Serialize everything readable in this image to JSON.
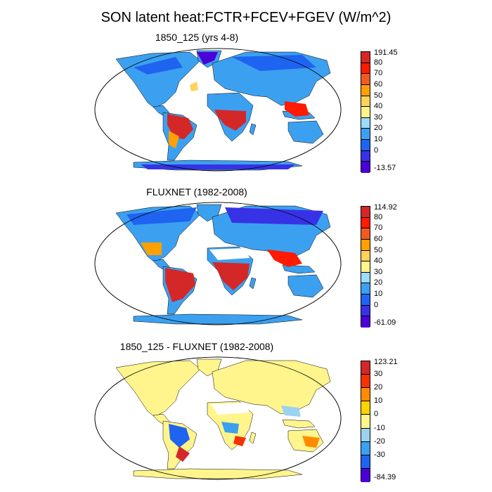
{
  "title": "SON latent heat:FCTR+FCEV+FGEV (W/m^2)",
  "panels": [
    {
      "title": "1850_125 (yrs 4-8)",
      "colorbar": {
        "labels": [
          "191.45",
          "80",
          "70",
          "60",
          "50",
          "40",
          "30",
          "20",
          "10",
          "0",
          "-13.57"
        ],
        "colors": [
          "#d42727",
          "#ff1a00",
          "#f05a1e",
          "#ffa000",
          "#ffd25a",
          "#fff58c",
          "#9bdcff",
          "#3ca0f0",
          "#1e64f0",
          "#3732e6",
          "#4b00d7"
        ]
      }
    },
    {
      "title": "FLUXNET (1982-2008)",
      "colorbar": {
        "labels": [
          "114.92",
          "80",
          "70",
          "60",
          "50",
          "40",
          "30",
          "20",
          "10",
          "0",
          "-61.09"
        ],
        "colors": [
          "#d42727",
          "#ff1a00",
          "#f05a1e",
          "#ffa000",
          "#ffd25a",
          "#fff58c",
          "#9bdcff",
          "#3ca0f0",
          "#1e64f0",
          "#3732e6",
          "#4b00d7"
        ]
      }
    },
    {
      "title": "1850_125 - FLUXNET (1982-2008)",
      "colorbar": {
        "labels": [
          "123.21",
          "30",
          "20",
          "10",
          "0",
          "-10",
          "-20",
          "-30",
          "-84.39"
        ],
        "colors": [
          "#d42727",
          "#f53200",
          "#ff8c00",
          "#ffd200",
          "#fff58c",
          "#9bd2f0",
          "#3ca0f0",
          "#1e64f0",
          "#4b00d7"
        ]
      }
    }
  ]
}
